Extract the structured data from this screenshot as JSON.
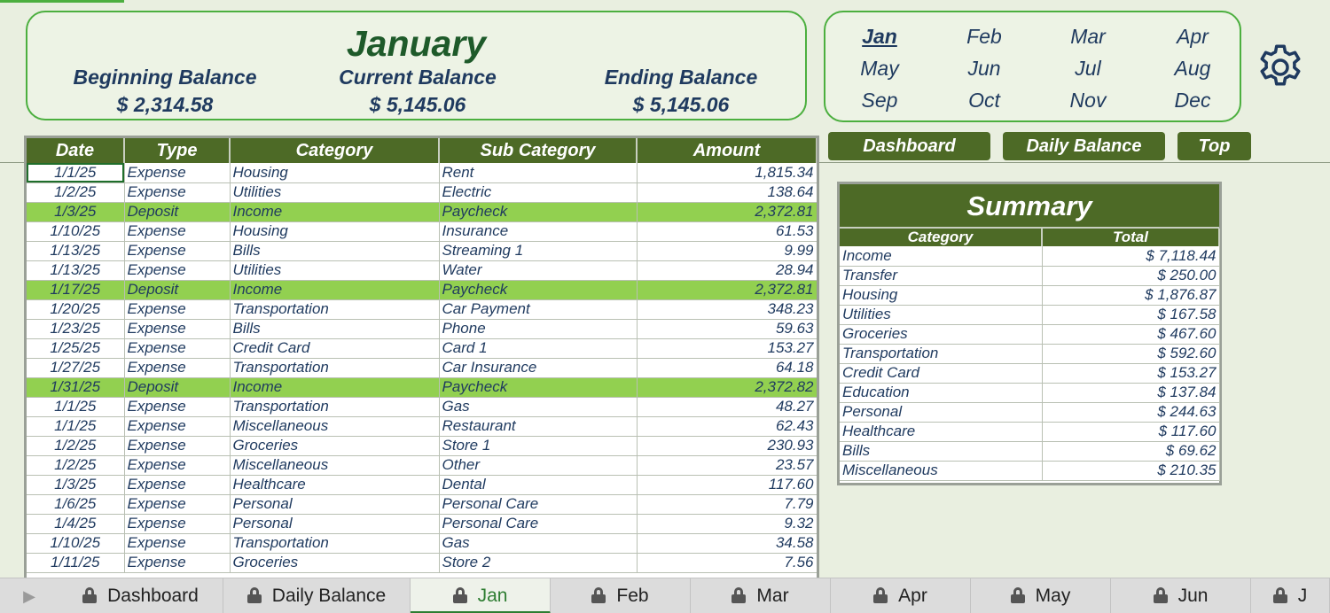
{
  "header": {
    "month_title": "January",
    "beginning": {
      "label": "Beginning Balance",
      "value": "$  2,314.58"
    },
    "current": {
      "label": "Current Balance",
      "value": "$  5,145.06"
    },
    "ending": {
      "label": "Ending Balance",
      "value": "$  5,145.06"
    }
  },
  "months": [
    "Jan",
    "Feb",
    "Mar",
    "Apr",
    "May",
    "Jun",
    "Jul",
    "Aug",
    "Sep",
    "Oct",
    "Nov",
    "Dec"
  ],
  "active_month": "Jan",
  "nav_buttons": {
    "dashboard": "Dashboard",
    "daily_balance": "Daily Balance",
    "top": "Top"
  },
  "transactions": {
    "headers": [
      "Date",
      "Type",
      "Category",
      "Sub Category",
      "Amount"
    ],
    "rows": [
      [
        "1/1/25",
        "Expense",
        "Housing",
        "Rent",
        "1,815.34"
      ],
      [
        "1/2/25",
        "Expense",
        "Utilities",
        "Electric",
        "138.64"
      ],
      [
        "1/3/25",
        "Deposit",
        "Income",
        "Paycheck",
        "2,372.81"
      ],
      [
        "1/10/25",
        "Expense",
        "Housing",
        "Insurance",
        "61.53"
      ],
      [
        "1/13/25",
        "Expense",
        "Bills",
        "Streaming 1",
        "9.99"
      ],
      [
        "1/13/25",
        "Expense",
        "Utilities",
        "Water",
        "28.94"
      ],
      [
        "1/17/25",
        "Deposit",
        "Income",
        "Paycheck",
        "2,372.81"
      ],
      [
        "1/20/25",
        "Expense",
        "Transportation",
        "Car Payment",
        "348.23"
      ],
      [
        "1/23/25",
        "Expense",
        "Bills",
        "Phone",
        "59.63"
      ],
      [
        "1/25/25",
        "Expense",
        "Credit Card",
        "Card 1",
        "153.27"
      ],
      [
        "1/27/25",
        "Expense",
        "Transportation",
        "Car Insurance",
        "64.18"
      ],
      [
        "1/31/25",
        "Deposit",
        "Income",
        "Paycheck",
        "2,372.82"
      ],
      [
        "1/1/25",
        "Expense",
        "Transportation",
        "Gas",
        "48.27"
      ],
      [
        "1/1/25",
        "Expense",
        "Miscellaneous",
        "Restaurant",
        "62.43"
      ],
      [
        "1/2/25",
        "Expense",
        "Groceries",
        "Store 1",
        "230.93"
      ],
      [
        "1/2/25",
        "Expense",
        "Miscellaneous",
        "Other",
        "23.57"
      ],
      [
        "1/3/25",
        "Expense",
        "Healthcare",
        "Dental",
        "117.60"
      ],
      [
        "1/6/25",
        "Expense",
        "Personal",
        "Personal Care",
        "7.79"
      ],
      [
        "1/4/25",
        "Expense",
        "Personal",
        "Personal Care",
        "9.32"
      ],
      [
        "1/10/25",
        "Expense",
        "Transportation",
        "Gas",
        "34.58"
      ],
      [
        "1/11/25",
        "Expense",
        "Groceries",
        "Store 2",
        "7.56"
      ]
    ]
  },
  "summary": {
    "title": "Summary",
    "headers": [
      "Category",
      "Total"
    ],
    "rows": [
      [
        "Income",
        "$ 7,118.44"
      ],
      [
        "Transfer",
        "$ 250.00"
      ],
      [
        "Housing",
        "$ 1,876.87"
      ],
      [
        "Utilities",
        "$ 167.58"
      ],
      [
        "Groceries",
        "$ 467.60"
      ],
      [
        "Transportation",
        "$ 592.60"
      ],
      [
        "Credit Card",
        "$ 153.27"
      ],
      [
        "Education",
        "$ 137.84"
      ],
      [
        "Personal",
        "$ 244.63"
      ],
      [
        "Healthcare",
        "$ 117.60"
      ],
      [
        "Bills",
        "$ 69.62"
      ],
      [
        "Miscellaneous",
        "$ 210.35"
      ]
    ]
  },
  "sheet_tabs": [
    "Dashboard",
    "Daily Balance",
    "Jan",
    "Feb",
    "Mar",
    "Apr",
    "May",
    "Jun",
    "J"
  ],
  "active_tab": "Jan",
  "colors": {
    "accent_green": "#4d6a26",
    "deposit_row": "#92d050",
    "border_green": "#4caf3f",
    "text_navy": "#1f3a5f"
  },
  "icons": {
    "settings": "gear-icon",
    "lock": "lock-icon",
    "scroll": "play-arrow-icon"
  }
}
